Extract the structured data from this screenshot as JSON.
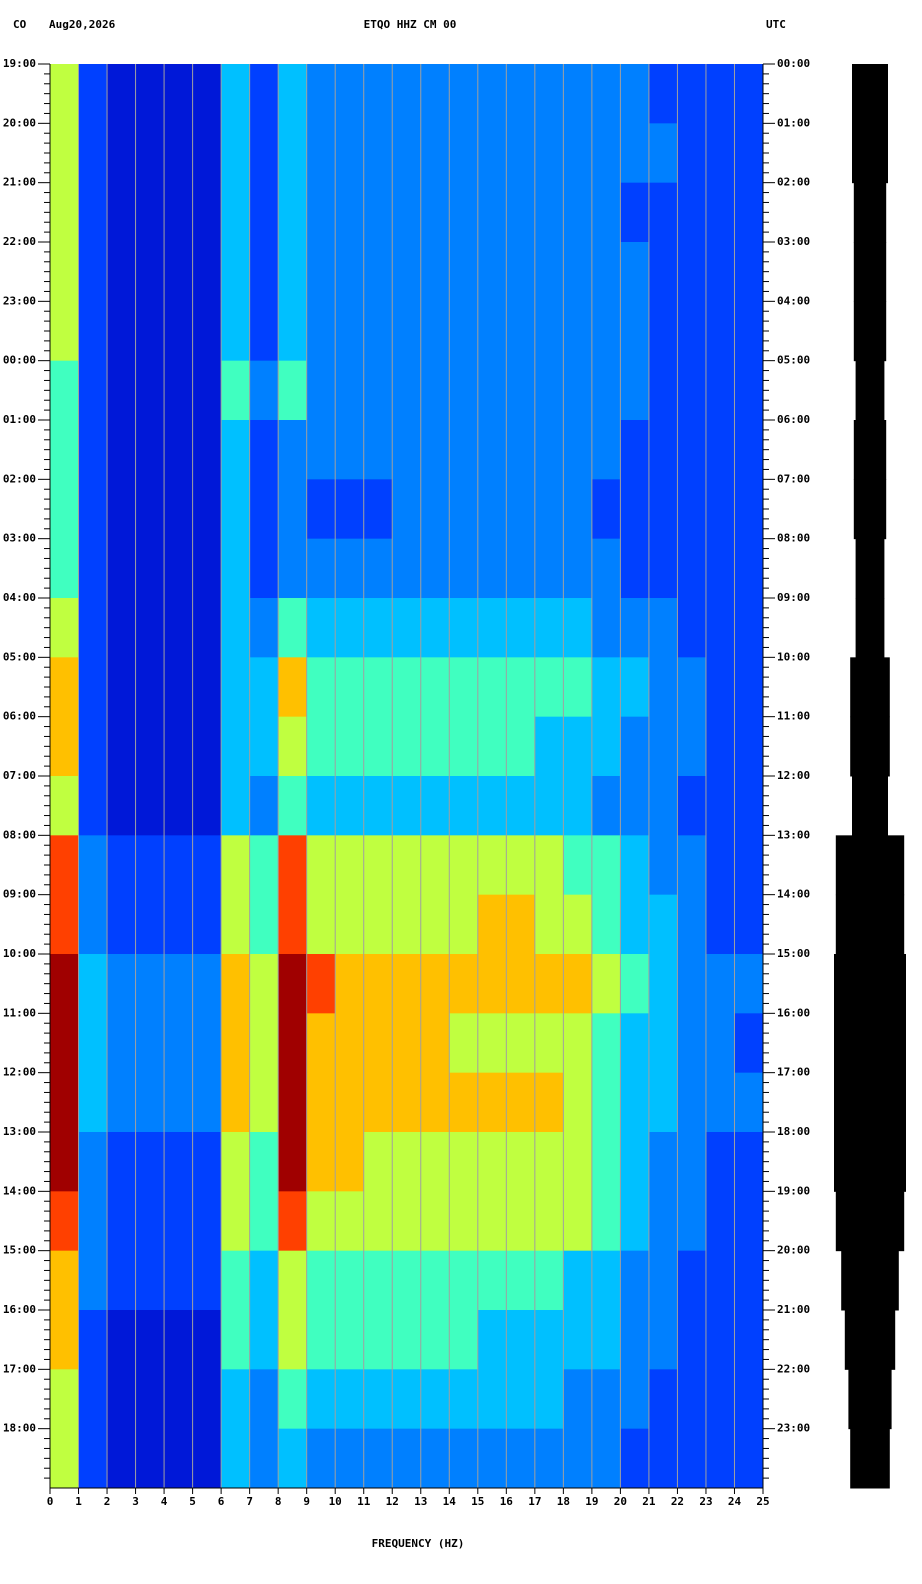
{
  "chart_data": {
    "type": "heatmap",
    "header": {
      "network": "CO",
      "date": "Aug20,2026",
      "title": "ETQO HHZ CM 00",
      "timezone": "UTC"
    },
    "xlabel": "FREQUENCY (HZ)",
    "xlim": [
      0,
      25
    ],
    "xticks": [
      0,
      1,
      2,
      3,
      4,
      5,
      6,
      7,
      8,
      9,
      10,
      11,
      12,
      13,
      14,
      15,
      16,
      17,
      18,
      19,
      20,
      21,
      22,
      23,
      24,
      25
    ],
    "y_labels_left": [
      "19:00",
      "20:00",
      "21:00",
      "22:00",
      "23:00",
      "00:00",
      "01:00",
      "02:00",
      "03:00",
      "04:00",
      "05:00",
      "06:00",
      "07:00",
      "08:00",
      "09:00",
      "10:00",
      "11:00",
      "12:00",
      "13:00",
      "14:00",
      "15:00",
      "16:00",
      "17:00",
      "18:00"
    ],
    "y_labels_right": [
      "00:00",
      "01:00",
      "02:00",
      "03:00",
      "04:00",
      "05:00",
      "06:00",
      "07:00",
      "08:00",
      "09:00",
      "10:00",
      "11:00",
      "12:00",
      "13:00",
      "14:00",
      "15:00",
      "16:00",
      "17:00",
      "18:00",
      "19:00",
      "20:00",
      "21:00",
      "22:00",
      "23:00"
    ],
    "colormap": [
      "#0010c0",
      "#0018d8",
      "#0040ff",
      "#0080ff",
      "#00c0ff",
      "#40ffc0",
      "#c0ff40",
      "#ffc000",
      "#ff4000",
      "#a00000"
    ],
    "grid": true,
    "z": [
      [
        6,
        2,
        1,
        1,
        1,
        1,
        4,
        2,
        4,
        3,
        3,
        3,
        3,
        3,
        3,
        3,
        3,
        3,
        3,
        3,
        3,
        2,
        2,
        2,
        2
      ],
      [
        6,
        2,
        1,
        1,
        1,
        1,
        4,
        2,
        4,
        3,
        3,
        3,
        3,
        3,
        3,
        3,
        3,
        3,
        3,
        3,
        3,
        3,
        2,
        2,
        2
      ],
      [
        6,
        2,
        1,
        1,
        1,
        1,
        4,
        2,
        4,
        3,
        3,
        3,
        3,
        3,
        3,
        3,
        3,
        3,
        3,
        3,
        2,
        2,
        2,
        2,
        2
      ],
      [
        6,
        2,
        1,
        1,
        1,
        1,
        4,
        2,
        4,
        3,
        3,
        3,
        3,
        3,
        3,
        3,
        3,
        3,
        3,
        3,
        3,
        2,
        2,
        2,
        2
      ],
      [
        6,
        2,
        1,
        1,
        1,
        1,
        4,
        2,
        4,
        3,
        3,
        3,
        3,
        3,
        3,
        3,
        3,
        3,
        3,
        3,
        3,
        2,
        2,
        2,
        2
      ],
      [
        5,
        2,
        1,
        1,
        1,
        1,
        5,
        3,
        5,
        3,
        3,
        3,
        3,
        3,
        3,
        3,
        3,
        3,
        3,
        3,
        3,
        2,
        2,
        2,
        2
      ],
      [
        5,
        2,
        1,
        1,
        1,
        1,
        4,
        2,
        3,
        3,
        3,
        3,
        3,
        3,
        3,
        3,
        3,
        3,
        3,
        3,
        2,
        2,
        2,
        2,
        2
      ],
      [
        5,
        2,
        1,
        1,
        1,
        1,
        4,
        2,
        3,
        2,
        2,
        2,
        3,
        3,
        3,
        3,
        3,
        3,
        3,
        2,
        2,
        2,
        2,
        2,
        2
      ],
      [
        5,
        2,
        1,
        1,
        1,
        1,
        4,
        2,
        3,
        3,
        3,
        3,
        3,
        3,
        3,
        3,
        3,
        3,
        3,
        3,
        2,
        2,
        2,
        2,
        2
      ],
      [
        6,
        2,
        1,
        1,
        1,
        1,
        4,
        3,
        5,
        4,
        4,
        4,
        4,
        4,
        4,
        4,
        4,
        4,
        4,
        3,
        3,
        3,
        2,
        2,
        2
      ],
      [
        7,
        2,
        1,
        1,
        1,
        1,
        4,
        4,
        7,
        5,
        5,
        5,
        5,
        5,
        5,
        5,
        5,
        5,
        5,
        4,
        4,
        3,
        3,
        2,
        2
      ],
      [
        7,
        2,
        1,
        1,
        1,
        1,
        4,
        4,
        6,
        5,
        5,
        5,
        5,
        5,
        5,
        5,
        5,
        4,
        4,
        4,
        3,
        3,
        3,
        2,
        2
      ],
      [
        6,
        2,
        1,
        1,
        1,
        1,
        4,
        3,
        5,
        4,
        4,
        4,
        4,
        4,
        4,
        4,
        4,
        4,
        4,
        3,
        3,
        3,
        2,
        2,
        2
      ],
      [
        8,
        3,
        2,
        2,
        2,
        2,
        6,
        5,
        8,
        6,
        6,
        6,
        6,
        6,
        6,
        6,
        6,
        6,
        5,
        5,
        4,
        3,
        3,
        2,
        2
      ],
      [
        8,
        3,
        2,
        2,
        2,
        2,
        6,
        5,
        8,
        6,
        6,
        6,
        6,
        6,
        6,
        7,
        7,
        6,
        6,
        5,
        4,
        4,
        3,
        2,
        2
      ],
      [
        9,
        4,
        3,
        3,
        3,
        3,
        7,
        6,
        9,
        8,
        7,
        7,
        7,
        7,
        7,
        7,
        7,
        7,
        7,
        6,
        5,
        4,
        3,
        3,
        3
      ],
      [
        9,
        4,
        3,
        3,
        3,
        3,
        7,
        6,
        9,
        7,
        7,
        7,
        7,
        7,
        6,
        6,
        6,
        6,
        6,
        5,
        4,
        4,
        3,
        3,
        2
      ],
      [
        9,
        4,
        3,
        3,
        3,
        3,
        7,
        6,
        9,
        7,
        7,
        7,
        7,
        7,
        7,
        7,
        7,
        7,
        6,
        5,
        4,
        4,
        3,
        3,
        3
      ],
      [
        9,
        3,
        2,
        2,
        2,
        2,
        6,
        5,
        9,
        7,
        7,
        6,
        6,
        6,
        6,
        6,
        6,
        6,
        6,
        5,
        4,
        3,
        3,
        2,
        2
      ],
      [
        8,
        3,
        2,
        2,
        2,
        2,
        6,
        5,
        8,
        6,
        6,
        6,
        6,
        6,
        6,
        6,
        6,
        6,
        6,
        5,
        4,
        3,
        3,
        2,
        2
      ],
      [
        7,
        3,
        2,
        2,
        2,
        2,
        5,
        4,
        6,
        5,
        5,
        5,
        5,
        5,
        5,
        5,
        5,
        5,
        4,
        4,
        3,
        3,
        2,
        2,
        2
      ],
      [
        7,
        2,
        1,
        1,
        1,
        1,
        5,
        4,
        6,
        5,
        5,
        5,
        5,
        5,
        5,
        4,
        4,
        4,
        4,
        4,
        3,
        3,
        2,
        2,
        2
      ],
      [
        6,
        2,
        1,
        1,
        1,
        1,
        4,
        3,
        5,
        4,
        4,
        4,
        4,
        4,
        4,
        4,
        4,
        4,
        3,
        3,
        3,
        2,
        2,
        2,
        2
      ],
      [
        6,
        2,
        1,
        1,
        1,
        1,
        4,
        3,
        4,
        3,
        3,
        3,
        3,
        3,
        3,
        3,
        3,
        3,
        3,
        3,
        2,
        2,
        2,
        2,
        2
      ]
    ],
    "trace": {
      "color": "#000000",
      "values": [
        0.5,
        0.5,
        0.45,
        0.45,
        0.45,
        0.4,
        0.45,
        0.45,
        0.4,
        0.4,
        0.55,
        0.55,
        0.5,
        0.95,
        0.95,
        1,
        1,
        1,
        1,
        0.95,
        0.8,
        0.7,
        0.6,
        0.55
      ]
    }
  }
}
